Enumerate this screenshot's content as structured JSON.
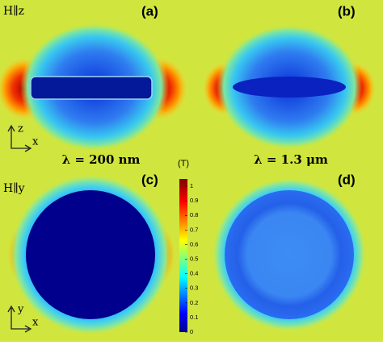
{
  "panels": {
    "a": {
      "field": "H∥z",
      "label": "(a)",
      "axis_up": "z",
      "axis_right": "x"
    },
    "b": {
      "label": "(b)"
    },
    "c": {
      "field": "H∥y",
      "label": "(c)",
      "axis_up": "y",
      "axis_right": "x"
    },
    "d": {
      "label": "(d)"
    }
  },
  "wavelengths": [
    "λ = 200 nm",
    "λ = 1.3 μm"
  ],
  "colorbar": {
    "unit": "(T)",
    "lim": [
      0,
      1.05
    ],
    "ticks": [
      0,
      0.1,
      0.2,
      0.3,
      0.4,
      0.5,
      0.6,
      0.7,
      0.8,
      0.9,
      1
    ]
  }
}
